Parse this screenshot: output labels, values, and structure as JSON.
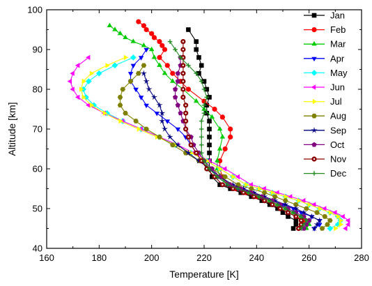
{
  "chart_data": {
    "type": "line",
    "xlabel": "Temperature [K]",
    "ylabel": "Altitude [km]",
    "xlim": [
      160,
      280
    ],
    "ylim": [
      40,
      100
    ],
    "xticks": [
      160,
      180,
      200,
      220,
      240,
      260,
      280
    ],
    "yticks": [
      40,
      50,
      60,
      70,
      80,
      90,
      100
    ],
    "legend_position": "top-right",
    "series": [
      {
        "name": "Jan",
        "color": "#000000",
        "marker": "square",
        "x": [
          254,
          255,
          255,
          252,
          250,
          248,
          245,
          242,
          238,
          234,
          230,
          226,
          223,
          222,
          222,
          222,
          222,
          222,
          222,
          222,
          221,
          221,
          222,
          221,
          220,
          218,
          219,
          218,
          217,
          217,
          214
        ],
        "y": [
          45,
          46,
          47,
          48,
          49,
          50,
          51,
          52,
          53,
          54,
          55,
          56,
          58,
          60,
          62,
          64,
          66,
          68,
          70,
          72,
          74,
          76,
          78,
          80,
          82,
          84,
          86,
          88,
          90,
          92,
          95
        ]
      },
      {
        "name": "Feb",
        "color": "#ff0000",
        "marker": "circle",
        "x": [
          256,
          257,
          258,
          255,
          252,
          249,
          246,
          243,
          240,
          236,
          232,
          229,
          227,
          226,
          226,
          228,
          230,
          230,
          227,
          224,
          220,
          214,
          211,
          208,
          206,
          203,
          205,
          204,
          203,
          201,
          200,
          198,
          197,
          195
        ],
        "y": [
          45,
          46,
          47,
          48,
          49,
          50,
          51,
          52,
          53,
          54,
          55,
          56,
          58,
          60,
          62,
          65,
          68,
          70,
          73,
          75,
          77,
          80,
          82,
          84,
          86,
          88,
          90,
          91,
          92,
          93,
          94,
          95,
          96,
          97
        ]
      },
      {
        "name": "Mar",
        "color": "#00cc00",
        "marker": "triangle-up",
        "x": [
          259,
          260,
          260,
          257,
          254,
          251,
          248,
          245,
          241,
          237,
          233,
          229,
          226,
          225,
          225,
          226,
          227,
          226,
          223,
          220,
          217,
          212,
          208,
          205,
          203,
          201,
          200,
          197,
          193,
          190,
          188,
          186,
          184
        ],
        "y": [
          45,
          46,
          47,
          48,
          49,
          50,
          51,
          52,
          53,
          54,
          55,
          56,
          58,
          60,
          62,
          65,
          68,
          70,
          73,
          75,
          77,
          80,
          82,
          84,
          86,
          88,
          90,
          91,
          92,
          93,
          94,
          95,
          96
        ]
      },
      {
        "name": "Apr",
        "color": "#0000ff",
        "marker": "triangle-down",
        "x": [
          262,
          264,
          264,
          261,
          257,
          254,
          250,
          246,
          242,
          238,
          233,
          229,
          225,
          222,
          219,
          217,
          215,
          213,
          210,
          206,
          202,
          198,
          196,
          194,
          192,
          192,
          193,
          196,
          198
        ],
        "y": [
          45,
          46,
          47,
          48,
          49,
          50,
          51,
          52,
          53,
          54,
          55,
          56,
          58,
          60,
          62,
          64,
          66,
          68,
          70,
          72,
          74,
          76,
          78,
          80,
          82,
          84,
          86,
          88,
          90
        ]
      },
      {
        "name": "May",
        "color": "#00ffff",
        "marker": "diamond",
        "x": [
          268,
          271,
          272,
          271,
          268,
          264,
          260,
          256,
          251,
          246,
          241,
          236,
          231,
          226,
          221,
          215,
          209,
          203,
          196,
          189,
          183,
          178,
          175,
          174,
          176,
          180,
          186,
          193
        ],
        "y": [
          45,
          46,
          47,
          48,
          49,
          50,
          51,
          52,
          53,
          54,
          55,
          56,
          58,
          60,
          62,
          64,
          66,
          68,
          70,
          72,
          74,
          76,
          78,
          80,
          82,
          84,
          86,
          88
        ]
      },
      {
        "name": "Jun",
        "color": "#ff00ff",
        "marker": "triangle-left",
        "x": [
          274,
          275,
          275,
          273,
          270,
          266,
          262,
          258,
          253,
          248,
          243,
          238,
          233,
          228,
          222,
          216,
          210,
          203,
          196,
          189,
          182,
          176,
          172,
          170,
          169,
          170,
          172,
          176
        ],
        "y": [
          45,
          46,
          47,
          48,
          49,
          50,
          51,
          52,
          53,
          54,
          55,
          56,
          58,
          60,
          62,
          64,
          66,
          68,
          70,
          72,
          74,
          76,
          78,
          80,
          82,
          84,
          86,
          88
        ]
      },
      {
        "name": "Jul",
        "color": "#ffff00",
        "marker": "triangle-right",
        "x": [
          270,
          272,
          272,
          271,
          268,
          264,
          260,
          256,
          251,
          246,
          241,
          236,
          231,
          226,
          221,
          215,
          209,
          202,
          195,
          188,
          182,
          177,
          174,
          173,
          174,
          177,
          183,
          190
        ],
        "y": [
          45,
          46,
          47,
          48,
          49,
          50,
          51,
          52,
          53,
          54,
          55,
          56,
          58,
          60,
          62,
          64,
          66,
          68,
          70,
          72,
          74,
          76,
          78,
          80,
          82,
          84,
          86,
          88
        ]
      },
      {
        "name": "Aug",
        "color": "#808000",
        "marker": "hexagon",
        "x": [
          265,
          267,
          268,
          266,
          263,
          259,
          255,
          251,
          247,
          243,
          238,
          233,
          228,
          223,
          218,
          213,
          208,
          203,
          198,
          194,
          190,
          188,
          188,
          189,
          192,
          195,
          197
        ],
        "y": [
          45,
          46,
          47,
          48,
          49,
          50,
          51,
          52,
          53,
          54,
          55,
          56,
          58,
          60,
          62,
          64,
          66,
          68,
          70,
          72,
          74,
          76,
          78,
          80,
          82,
          84,
          86
        ]
      },
      {
        "name": "Sep",
        "color": "#000080",
        "marker": "star",
        "x": [
          262,
          263,
          264,
          261,
          258,
          255,
          251,
          247,
          243,
          239,
          235,
          231,
          226,
          222,
          218,
          214,
          210,
          207,
          205,
          204,
          204,
          203,
          201,
          199,
          198,
          197
        ],
        "y": [
          45,
          46,
          47,
          48,
          49,
          50,
          51,
          52,
          53,
          54,
          55,
          56,
          58,
          60,
          62,
          64,
          66,
          68,
          70,
          72,
          74,
          76,
          78,
          80,
          82,
          84
        ]
      },
      {
        "name": "Oct",
        "color": "#800080",
        "marker": "pentagon",
        "x": [
          258,
          259,
          260,
          258,
          255,
          252,
          249,
          246,
          242,
          238,
          234,
          230,
          226,
          223,
          220,
          218,
          216,
          215,
          213,
          212,
          211,
          210,
          209,
          209,
          210,
          210,
          211,
          211
        ],
        "y": [
          45,
          46,
          47,
          48,
          49,
          50,
          51,
          52,
          53,
          54,
          55,
          56,
          58,
          60,
          62,
          64,
          66,
          68,
          70,
          72,
          74,
          76,
          78,
          80,
          82,
          84,
          86,
          88
        ]
      },
      {
        "name": "Nov",
        "color": "#8b0000",
        "marker": "circle-dot",
        "x": [
          256,
          257,
          257,
          255,
          252,
          249,
          246,
          243,
          239,
          235,
          231,
          227,
          224,
          221,
          219,
          217,
          215,
          214,
          213,
          213,
          213,
          213,
          212,
          212,
          212,
          212,
          212,
          212,
          212,
          212
        ],
        "y": [
          45,
          46,
          47,
          48,
          49,
          50,
          51,
          52,
          53,
          54,
          55,
          56,
          58,
          60,
          62,
          64,
          66,
          68,
          70,
          72,
          74,
          76,
          78,
          80,
          82,
          84,
          86,
          88,
          90,
          92
        ]
      },
      {
        "name": "Dec",
        "color": "#228b22",
        "marker": "plus",
        "x": [
          257,
          258,
          259,
          257,
          254,
          251,
          248,
          245,
          241,
          237,
          233,
          229,
          225,
          222,
          220,
          219,
          219,
          219,
          219,
          219,
          220,
          220,
          221,
          220,
          219,
          217,
          214,
          211,
          209,
          207
        ],
        "y": [
          45,
          46,
          47,
          48,
          49,
          50,
          51,
          52,
          53,
          54,
          55,
          56,
          58,
          60,
          62,
          64,
          66,
          68,
          70,
          72,
          74,
          76,
          78,
          80,
          82,
          84,
          86,
          88,
          90,
          92
        ]
      }
    ]
  }
}
